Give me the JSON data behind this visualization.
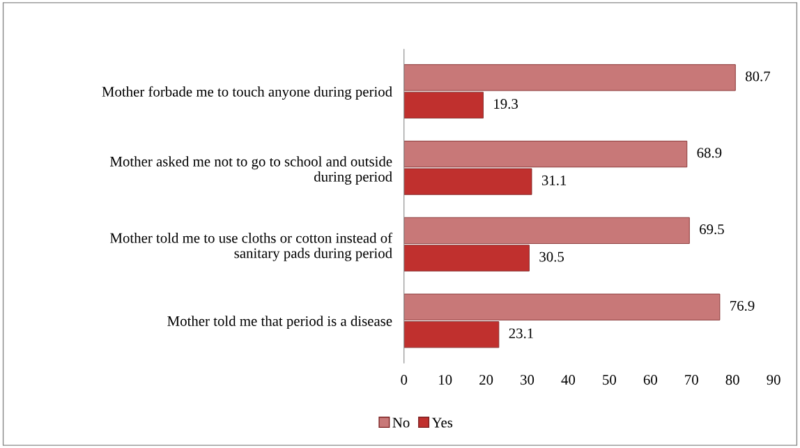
{
  "chart_data": {
    "type": "bar",
    "orientation": "horizontal",
    "categories": [
      "Mother forbade me to touch anyone during period",
      "Mother asked me not to go to school and outside\nduring period",
      "Mother told me to use cloths or cotton instead of\nsanitary pads during period",
      "Mother told me that period is a disease"
    ],
    "series": [
      {
        "name": "No",
        "color": "#c87878",
        "values": [
          80.7,
          68.9,
          69.5,
          76.9
        ]
      },
      {
        "name": "Yes",
        "color": "#c0302e",
        "values": [
          19.3,
          31.1,
          30.5,
          23.1
        ]
      }
    ],
    "xlim": [
      0,
      90
    ],
    "xticks": [
      0,
      10,
      20,
      30,
      40,
      50,
      60,
      70,
      80,
      90
    ],
    "data_labels": true,
    "grid": false,
    "legend": "bottom"
  }
}
